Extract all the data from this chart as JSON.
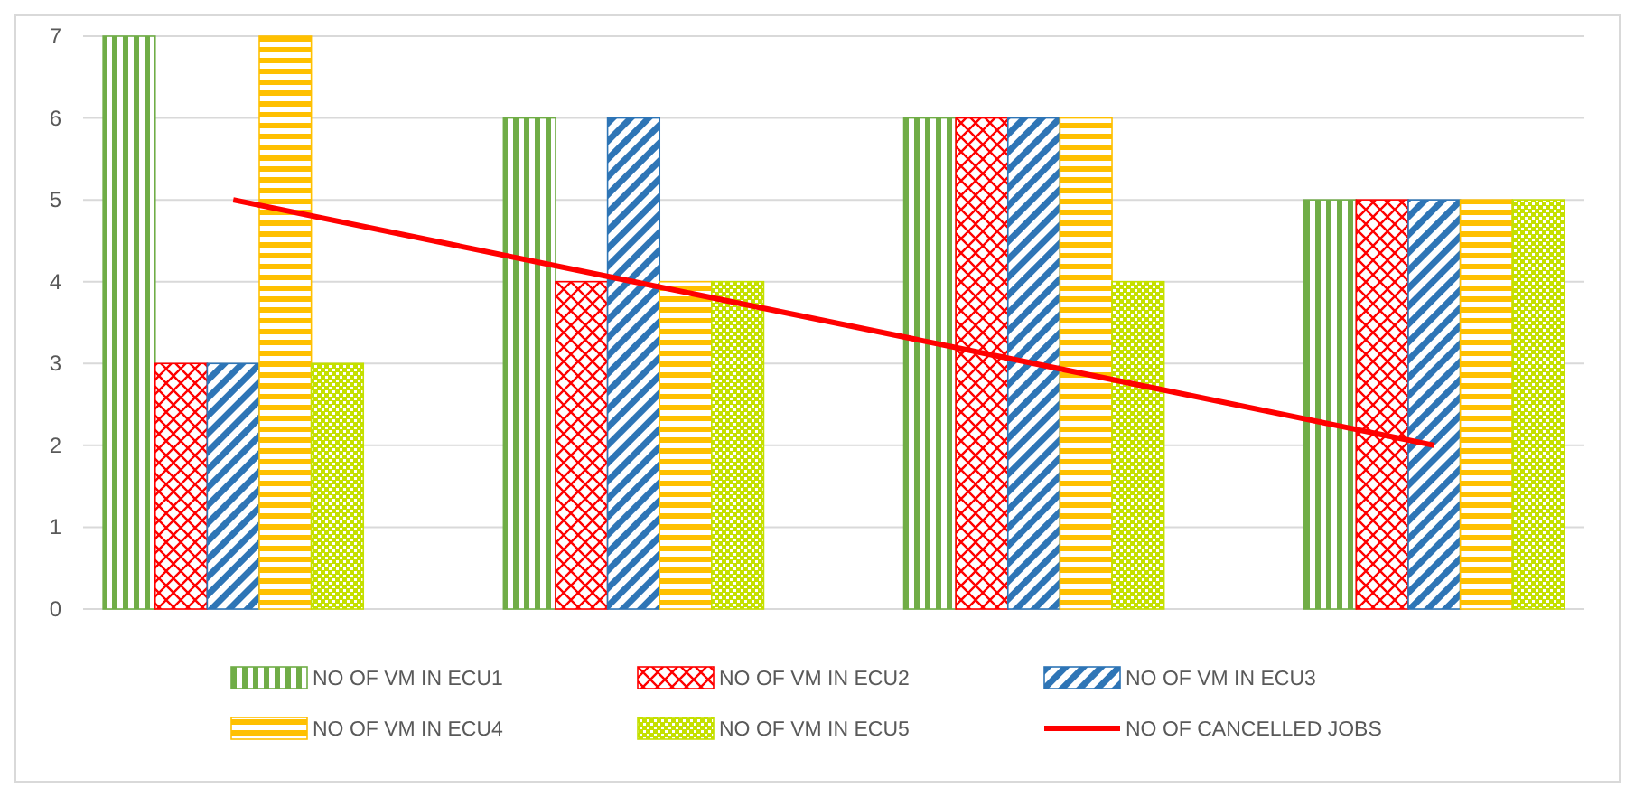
{
  "chart_data": {
    "type": "bar",
    "categories": [
      null,
      null,
      null,
      null
    ],
    "series": [
      {
        "name": "NO OF VM IN ECU1",
        "color": "#70ad47",
        "values": [
          7,
          6,
          6,
          5
        ]
      },
      {
        "name": "NO OF VM IN ECU2",
        "color": "#ff0000",
        "values": [
          3,
          4,
          6,
          5
        ]
      },
      {
        "name": "NO OF VM IN ECU3",
        "color": "#2e75b6",
        "values": [
          3,
          6,
          6,
          5
        ]
      },
      {
        "name": "NO OF VM IN ECU4",
        "color": "#ffc000",
        "values": [
          7,
          4,
          6,
          5
        ]
      },
      {
        "name": "NO OF VM IN ECU5",
        "color": "#c5e000",
        "values": [
          3,
          4,
          4,
          5
        ]
      },
      {
        "name": "NO OF CANCELLED JOBS",
        "type": "line",
        "color": "#ff0000",
        "values": [
          5,
          4,
          3,
          2
        ]
      }
    ],
    "ylim": [
      0,
      7
    ],
    "yticks": [
      0,
      1,
      2,
      3,
      4,
      5,
      6,
      7
    ],
    "grid": "y",
    "legend": "bottom",
    "marker": "none",
    "line_style": "solid"
  }
}
